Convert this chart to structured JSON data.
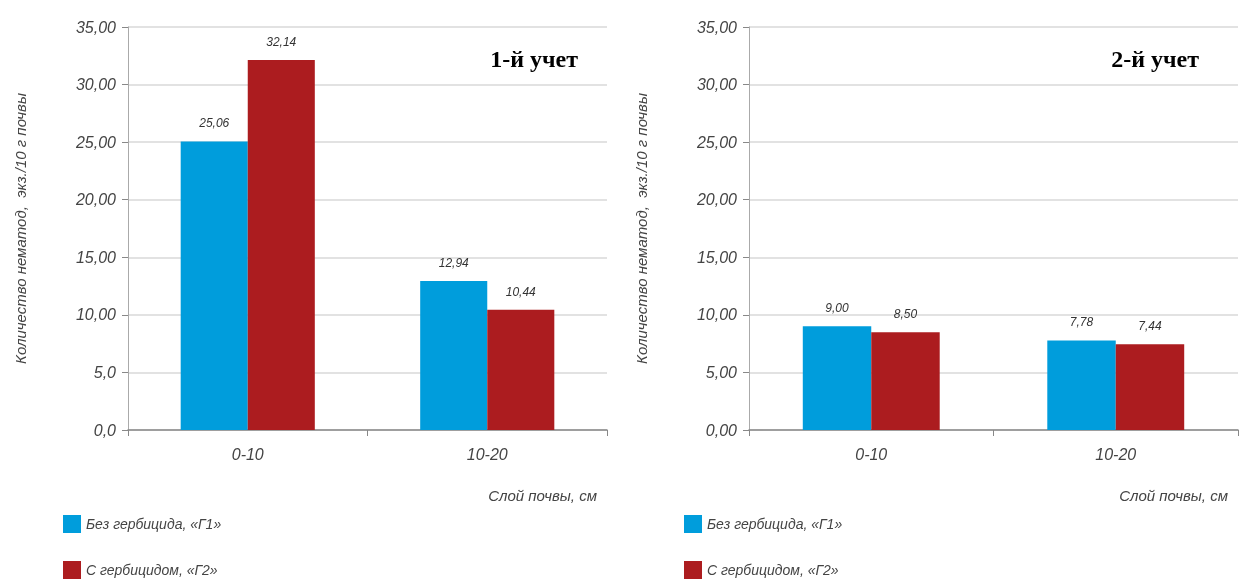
{
  "chart_data": [
    {
      "type": "bar",
      "title": "1-й учет",
      "xlabel": "Слой почвы, см",
      "ylabel": "Количество нематод,  экз./10 г почвы",
      "categories": [
        "0-10",
        "10-20"
      ],
      "series": [
        {
          "name": "Без гербицида, «Г1»",
          "color": "#009ddc",
          "values": [
            25.06,
            12.94
          ],
          "value_labels": [
            "25,06",
            "12,94"
          ]
        },
        {
          "name": "С гербицидом, «Г2»",
          "color": "#ac1c1f",
          "values": [
            32.14,
            10.44
          ],
          "value_labels": [
            "32,14",
            "10,44"
          ]
        }
      ],
      "ylim": [
        0,
        35
      ],
      "yticks": [
        {
          "value": 0,
          "label": "0,0"
        },
        {
          "value": 5,
          "label": "5,0"
        },
        {
          "value": 10,
          "label": "10,00"
        },
        {
          "value": 15,
          "label": "15,00"
        },
        {
          "value": 20,
          "label": "20,00"
        },
        {
          "value": 25,
          "label": "25,00"
        },
        {
          "value": 30,
          "label": "30,00"
        },
        {
          "value": 35,
          "label": "35,00"
        }
      ],
      "grid": "y",
      "legend": "bottom left"
    },
    {
      "type": "bar",
      "title": "2-й учет",
      "xlabel": "Слой почвы, см",
      "ylabel": "Количество нематод,  экз./10 г почвы",
      "categories": [
        "0-10",
        "10-20"
      ],
      "series": [
        {
          "name": "Без гербицида, «Г1»",
          "color": "#009ddc",
          "values": [
            9.0,
            7.78
          ],
          "value_labels": [
            "9,00",
            "7,78"
          ]
        },
        {
          "name": "С гербицидом, «Г2»",
          "color": "#ac1c1f",
          "values": [
            8.5,
            7.44
          ],
          "value_labels": [
            "8,50",
            "7,44"
          ]
        }
      ],
      "ylim": [
        0,
        35
      ],
      "yticks": [
        {
          "value": 0,
          "label": "0,00"
        },
        {
          "value": 5,
          "label": "5,00"
        },
        {
          "value": 10,
          "label": "10,00"
        },
        {
          "value": 15,
          "label": "15,00"
        },
        {
          "value": 20,
          "label": "20,00"
        },
        {
          "value": 25,
          "label": "25,00"
        },
        {
          "value": 30,
          "label": "30,00"
        },
        {
          "value": 35,
          "label": "35,00"
        }
      ],
      "grid": "y",
      "legend": "bottom left"
    }
  ]
}
